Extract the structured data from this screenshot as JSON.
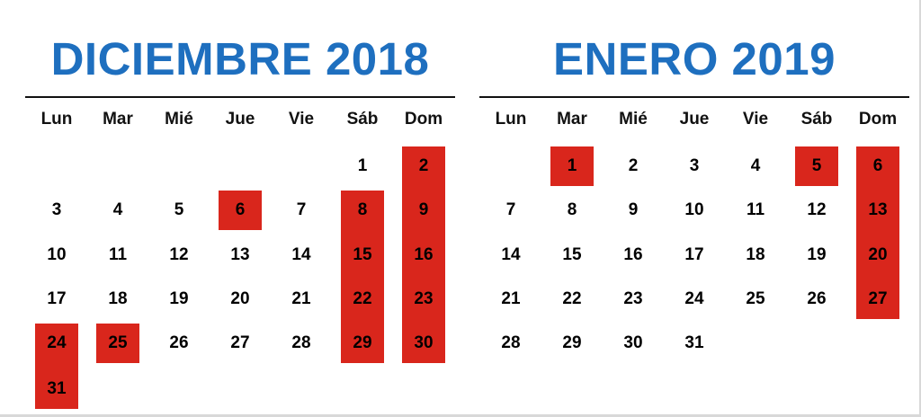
{
  "calendars": [
    {
      "title": "DICIEMBRE 2018",
      "weekdays": [
        "Lun",
        "Mar",
        "Mié",
        "Jue",
        "Vie",
        "Sáb",
        "Dom"
      ],
      "start_offset": 5,
      "num_days": 31,
      "highlighted": [
        2,
        6,
        8,
        9,
        15,
        16,
        22,
        23,
        24,
        25,
        29,
        30,
        31
      ]
    },
    {
      "title": "ENERO 2019",
      "weekdays": [
        "Lun",
        "Mar",
        "Mié",
        "Jue",
        "Vie",
        "Sáb",
        "Dom"
      ],
      "start_offset": 1,
      "num_days": 31,
      "highlighted": [
        1,
        5,
        6,
        13,
        20,
        27
      ]
    }
  ],
  "colors": {
    "title": "#1e6fbf",
    "highlight": "#d9261c",
    "text": "#000000",
    "rule": "#111111"
  }
}
